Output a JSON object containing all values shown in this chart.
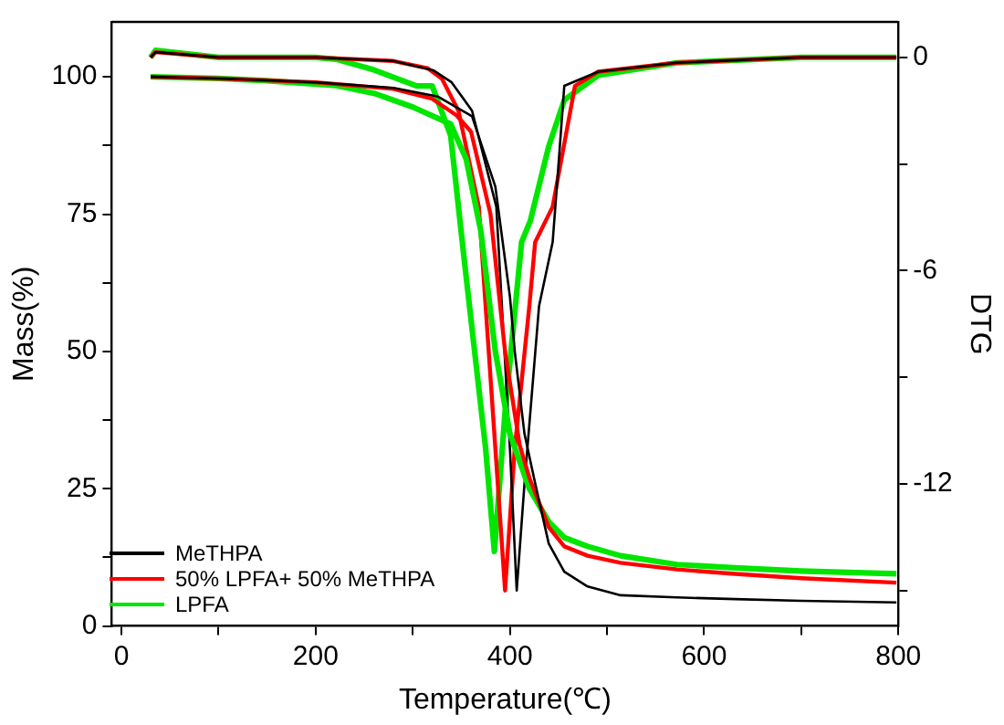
{
  "chart_data": {
    "type": "line",
    "xlabel": "Temperature(℃)",
    "ylabel": "Mass(%)",
    "y2label": "DTG",
    "xlim": [
      -10,
      800
    ],
    "xticks": [
      0,
      {
        "value": 100,
        "label": null
      },
      200,
      {
        "value": 300,
        "label": null
      },
      400,
      {
        "value": 500,
        "label": null
      },
      600,
      {
        "value": 700,
        "label": null
      },
      800
    ],
    "ylim": [
      0,
      110
    ],
    "yticks": [
      0,
      {
        "value": 12.5,
        "label": null
      },
      25,
      {
        "value": 37.5,
        "label": null
      },
      50,
      {
        "value": 62.5,
        "label": null
      },
      75,
      {
        "value": 87.5,
        "label": null
      },
      100
    ],
    "y2lim": [
      -16,
      1
    ],
    "y2ticks": [
      {
        "value": -15,
        "label": null
      },
      -12,
      {
        "value": -9,
        "label": null
      },
      -6,
      {
        "value": -3,
        "label": null
      },
      0
    ],
    "grid": false,
    "legend": "bottom left",
    "marker": "none",
    "line_style": "solid",
    "series": [
      {
        "name": "MeTHPA",
        "color": "#000000",
        "x": [
          30,
          100,
          200,
          280,
          326,
          361,
          385,
          400,
          405,
          415,
          426,
          440,
          456,
          480,
          514,
          572,
          632,
          700,
          798
        ],
        "values": [
          100,
          99.7,
          99,
          98,
          96.4,
          92.8,
          80,
          60,
          50,
          35,
          26,
          15,
          9.9,
          7.2,
          5.6,
          5.2,
          4.9,
          4.6,
          4.3
        ]
      },
      {
        "name": "50% LPFA+ 50% MeTHPA",
        "color": "#ff0000",
        "x": [
          30,
          100,
          200,
          280,
          320,
          345,
          360,
          380,
          395,
          410,
          420,
          440,
          456,
          480,
          514,
          572,
          632,
          700,
          798
        ],
        "values": [
          100,
          99.7,
          99,
          97.8,
          96,
          93,
          90,
          75,
          50,
          33,
          27,
          18,
          14.5,
          12.8,
          11.5,
          10.3,
          9.5,
          8.7,
          7.9
        ]
      },
      {
        "name": "LPFA",
        "color": "#00e600",
        "x": [
          30,
          100,
          150,
          221,
          260,
          300,
          339,
          355,
          370,
          385,
          400,
          420,
          440,
          456,
          480,
          514,
          572,
          632,
          700,
          798
        ],
        "values": [
          100,
          99.7,
          99.3,
          98.4,
          97,
          94.5,
          91.4,
          85,
          72,
          50,
          35,
          25,
          19,
          16.1,
          14.5,
          12.8,
          11.2,
          10.6,
          10,
          9.5
        ]
      },
      {
        "color": "#000000",
        "axis": "y2",
        "x": [
          30,
          35,
          100,
          200,
          280,
          321,
          340,
          361,
          386,
          400,
          407,
          415,
          430,
          444,
          449,
          456,
          491,
          572,
          700,
          798
        ],
        "values": [
          0,
          0.15,
          0,
          0,
          -0.1,
          -0.36,
          -0.7,
          -1.5,
          -4.2,
          -11,
          -15,
          -12,
          -7,
          -5.2,
          -3.4,
          -0.8,
          -0.4,
          -0.15,
          0,
          0
        ]
      },
      {
        "color": "#ff0000",
        "axis": "y2",
        "x": [
          30,
          35,
          100,
          200,
          280,
          315,
          330,
          347,
          368,
          385,
          395,
          405,
          420,
          426,
          444,
          467,
          491,
          572,
          700,
          798
        ],
        "values": [
          0,
          0.15,
          0,
          0,
          -0.1,
          -0.3,
          -0.6,
          -1.5,
          -4.2,
          -11,
          -15,
          -11,
          -7,
          -5.2,
          -4.2,
          -0.8,
          -0.4,
          -0.15,
          0,
          0
        ]
      },
      {
        "color": "#00e600",
        "axis": "y2",
        "x": [
          30,
          35,
          100,
          200,
          221,
          260,
          304,
          320,
          339,
          353,
          375,
          384,
          395,
          412,
          421,
          440,
          456,
          491,
          572,
          700,
          798
        ],
        "values": [
          0,
          0.2,
          0,
          0,
          -0.05,
          -0.35,
          -0.8,
          -0.8,
          -2.2,
          -5.7,
          -11,
          -13.9,
          -10,
          -5.2,
          -4.6,
          -2.5,
          -1.2,
          -0.5,
          -0.15,
          0,
          0
        ]
      }
    ]
  }
}
